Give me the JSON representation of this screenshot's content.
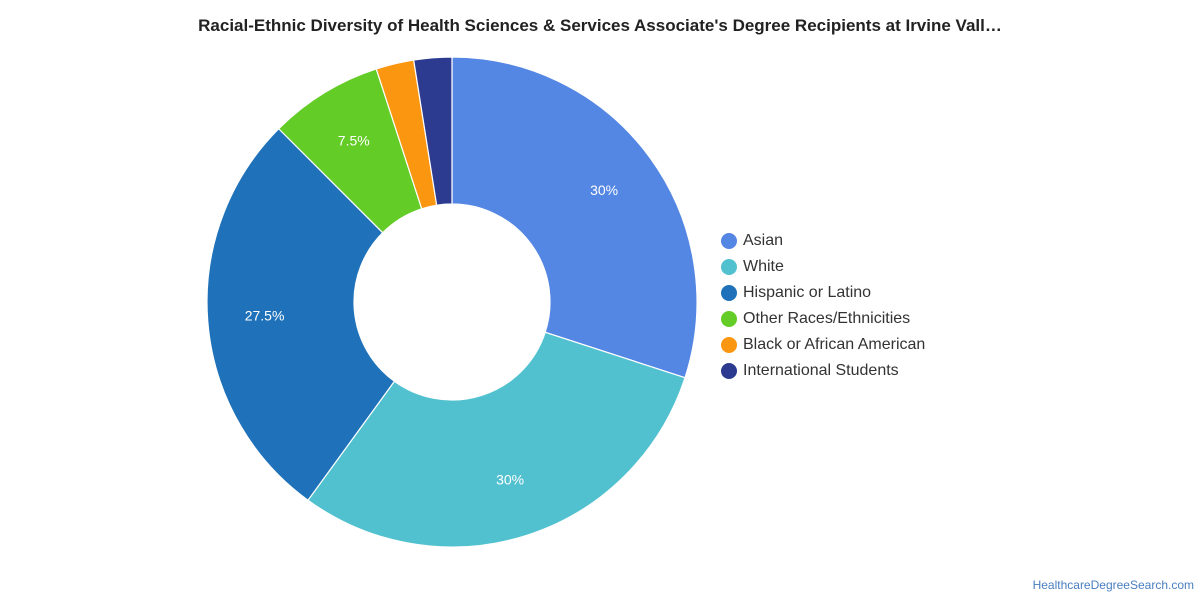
{
  "chart_data": {
    "type": "pie",
    "variant": "donut",
    "title": "Racial-Ethnic Diversity of Health Sciences & Services Associate's Degree Recipients at Irvine Vall…",
    "slices": [
      {
        "name": "Asian",
        "value": 30,
        "label": "30%",
        "color": "#5486e3"
      },
      {
        "name": "White",
        "value": 30,
        "label": "30%",
        "color": "#52c1cf"
      },
      {
        "name": "Hispanic or Latino",
        "value": 27.5,
        "label": "27.5%",
        "color": "#1f72b9"
      },
      {
        "name": "Other Races/Ethnicities",
        "value": 7.5,
        "label": "7.5%",
        "color": "#63cc26"
      },
      {
        "name": "Black or African American",
        "value": 2.5,
        "label": "",
        "color": "#fb9610"
      },
      {
        "name": "International Students",
        "value": 2.5,
        "label": "",
        "color": "#2c3b8f"
      }
    ],
    "legend_position": "right"
  },
  "source": "HealthcareDegreeSearch.com"
}
